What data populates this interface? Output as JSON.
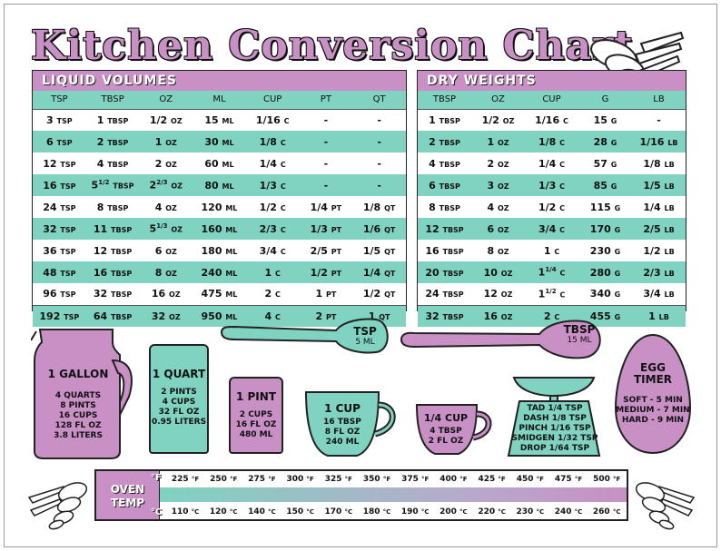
{
  "title": "Kitchen Conversion Chart",
  "liquid": {
    "header": "LIQUID VOLUMES",
    "columns": [
      "TSP",
      "TBSP",
      "OZ",
      "ML",
      "CUP",
      "PT",
      "QT"
    ],
    "rows": [
      [
        [
          "3",
          "TSP"
        ],
        [
          "1",
          "TBSP"
        ],
        [
          "1/2",
          "OZ"
        ],
        [
          "15",
          "ML"
        ],
        [
          "1/16",
          "C"
        ],
        [
          "-",
          ""
        ],
        [
          "-",
          ""
        ]
      ],
      [
        [
          "6",
          "TSP"
        ],
        [
          "2",
          "TBSP"
        ],
        [
          "1",
          "OZ"
        ],
        [
          "30",
          "ML"
        ],
        [
          "1/8",
          "C"
        ],
        [
          "-",
          ""
        ],
        [
          "-",
          ""
        ]
      ],
      [
        [
          "12",
          "TSP"
        ],
        [
          "4",
          "TBSP"
        ],
        [
          "2",
          "OZ"
        ],
        [
          "60",
          "ML"
        ],
        [
          "1/4",
          "C"
        ],
        [
          "-",
          ""
        ],
        [
          "-",
          ""
        ]
      ],
      [
        [
          "16",
          "TSP"
        ],
        [
          "5 1/2",
          "TBSP"
        ],
        [
          "2 2/3",
          "OZ"
        ],
        [
          "80",
          "ML"
        ],
        [
          "1/3",
          "C"
        ],
        [
          "-",
          ""
        ],
        [
          "-",
          ""
        ]
      ],
      [
        [
          "24",
          "TSP"
        ],
        [
          "8",
          "TBSP"
        ],
        [
          "4",
          "OZ"
        ],
        [
          "120",
          "ML"
        ],
        [
          "1/2",
          "C"
        ],
        [
          "1/4",
          "PT"
        ],
        [
          "1/8",
          "QT"
        ]
      ],
      [
        [
          "32",
          "TSP"
        ],
        [
          "11",
          "TBSP"
        ],
        [
          "5 1/3",
          "OZ"
        ],
        [
          "160",
          "ML"
        ],
        [
          "2/3",
          "C"
        ],
        [
          "1/3",
          "PT"
        ],
        [
          "1/6",
          "QT"
        ]
      ],
      [
        [
          "36",
          "TSP"
        ],
        [
          "12",
          "TBSP"
        ],
        [
          "6",
          "OZ"
        ],
        [
          "180",
          "ML"
        ],
        [
          "3/4",
          "C"
        ],
        [
          "2/5",
          "PT"
        ],
        [
          "1/5",
          "QT"
        ]
      ],
      [
        [
          "48",
          "TSP"
        ],
        [
          "16",
          "TBSP"
        ],
        [
          "8",
          "OZ"
        ],
        [
          "240",
          "ML"
        ],
        [
          "1",
          "C"
        ],
        [
          "1/2",
          "PT"
        ],
        [
          "1/4",
          "QT"
        ]
      ],
      [
        [
          "96",
          "TSP"
        ],
        [
          "32",
          "TBSP"
        ],
        [
          "16",
          "OZ"
        ],
        [
          "475",
          "ML"
        ],
        [
          "2",
          "C"
        ],
        [
          "1",
          "PT"
        ],
        [
          "1/2",
          "QT"
        ]
      ],
      [
        [
          "192",
          "TSP"
        ],
        [
          "64",
          "TBSP"
        ],
        [
          "32",
          "OZ"
        ],
        [
          "950",
          "ML"
        ],
        [
          "4",
          "C"
        ],
        [
          "2",
          "PT"
        ],
        [
          "1",
          "QT"
        ]
      ]
    ]
  },
  "dry": {
    "header": "DRY WEIGHTS",
    "columns": [
      "TBSP",
      "OZ",
      "CUP",
      "G",
      "LB"
    ],
    "rows": [
      [
        [
          "1",
          "TBSP"
        ],
        [
          "1/2",
          "OZ"
        ],
        [
          "1/16",
          "C"
        ],
        [
          "15",
          "G"
        ],
        [
          "-",
          ""
        ]
      ],
      [
        [
          "2",
          "TBSP"
        ],
        [
          "1",
          "OZ"
        ],
        [
          "1/8",
          "C"
        ],
        [
          "28",
          "G"
        ],
        [
          "1/16",
          "LB"
        ]
      ],
      [
        [
          "4",
          "TBSP"
        ],
        [
          "2",
          "OZ"
        ],
        [
          "1/4",
          "C"
        ],
        [
          "57",
          "G"
        ],
        [
          "1/8",
          "LB"
        ]
      ],
      [
        [
          "6",
          "TBSP"
        ],
        [
          "3",
          "OZ"
        ],
        [
          "1/3",
          "C"
        ],
        [
          "85",
          "G"
        ],
        [
          "1/5",
          "LB"
        ]
      ],
      [
        [
          "8",
          "TBSP"
        ],
        [
          "4",
          "OZ"
        ],
        [
          "1/2",
          "C"
        ],
        [
          "115",
          "G"
        ],
        [
          "1/4",
          "LB"
        ]
      ],
      [
        [
          "12",
          "TBSP"
        ],
        [
          "6",
          "OZ"
        ],
        [
          "3/4",
          "C"
        ],
        [
          "170",
          "G"
        ],
        [
          "2/5",
          "LB"
        ]
      ],
      [
        [
          "16",
          "TBSP"
        ],
        [
          "8",
          "OZ"
        ],
        [
          "1",
          "C"
        ],
        [
          "230",
          "G"
        ],
        [
          "1/2",
          "LB"
        ]
      ],
      [
        [
          "20",
          "TBSP"
        ],
        [
          "10",
          "OZ"
        ],
        [
          "1 1/4",
          "C"
        ],
        [
          "280",
          "G"
        ],
        [
          "2/3",
          "LB"
        ]
      ],
      [
        [
          "24",
          "TBSP"
        ],
        [
          "12",
          "OZ"
        ],
        [
          "1 1/2",
          "C"
        ],
        [
          "340",
          "G"
        ],
        [
          "3/4",
          "LB"
        ]
      ],
      [
        [
          "32",
          "TBSP"
        ],
        [
          "16",
          "OZ"
        ],
        [
          "2",
          "C"
        ],
        [
          "455",
          "G"
        ],
        [
          "1",
          "LB"
        ]
      ]
    ]
  },
  "gallon": {
    "title": "1 GALLON",
    "lines": [
      "4 QUARTS",
      "8 PINTS",
      "16 CUPS",
      "128 FL OZ",
      "3.8 LITERS"
    ]
  },
  "quart": {
    "title": "1 QUART",
    "lines": [
      "2 PINTS",
      "4 CUPS",
      "32 FL OZ",
      "0.95 LITERS"
    ]
  },
  "pint": {
    "title": "1 PINT",
    "lines": [
      "2 CUPS",
      "16 FL OZ",
      "480 ML"
    ]
  },
  "cup": {
    "title": "1 CUP",
    "lines": [
      "16 TBSP",
      "8 FL OZ",
      "240 ML"
    ]
  },
  "quarter_cup": {
    "title": "1/4 CUP",
    "lines": [
      "4 TBSP",
      "2 FL OZ"
    ]
  },
  "tsp_spoon": {
    "title": "TSP",
    "sub": "5 ML"
  },
  "tbsp_spoon": {
    "title": "TBSP",
    "sub": "15 ML"
  },
  "scale": {
    "lines": [
      "TAD 1/4 TSP",
      "DASH 1/8 TSP",
      "PINCH 1/16 TSP",
      "SMIDGEN 1/32 TSP",
      "DROP 1/64 TSP"
    ]
  },
  "egg": {
    "title": "EGG TIMER",
    "lines": [
      "SOFT - 5 MIN",
      "MEDIUM - 7 MIN",
      "HARD - 9 MIN"
    ]
  },
  "oven": {
    "label_line1": "OVEN",
    "label_line2": "TEMP",
    "f_unit": "°F",
    "c_unit": "°C",
    "f_small": "°F",
    "c_small": "°C",
    "fahrenheit": [
      "225",
      "250",
      "275",
      "300",
      "325",
      "350",
      "375",
      "400",
      "425",
      "450",
      "475",
      "500"
    ],
    "celsius": [
      "110",
      "120",
      "140",
      "150",
      "170",
      "180",
      "190",
      "200",
      "220",
      "230",
      "240",
      "260"
    ]
  },
  "colors": {
    "pink": "#c890c4",
    "teal": "#7fd3c0"
  }
}
